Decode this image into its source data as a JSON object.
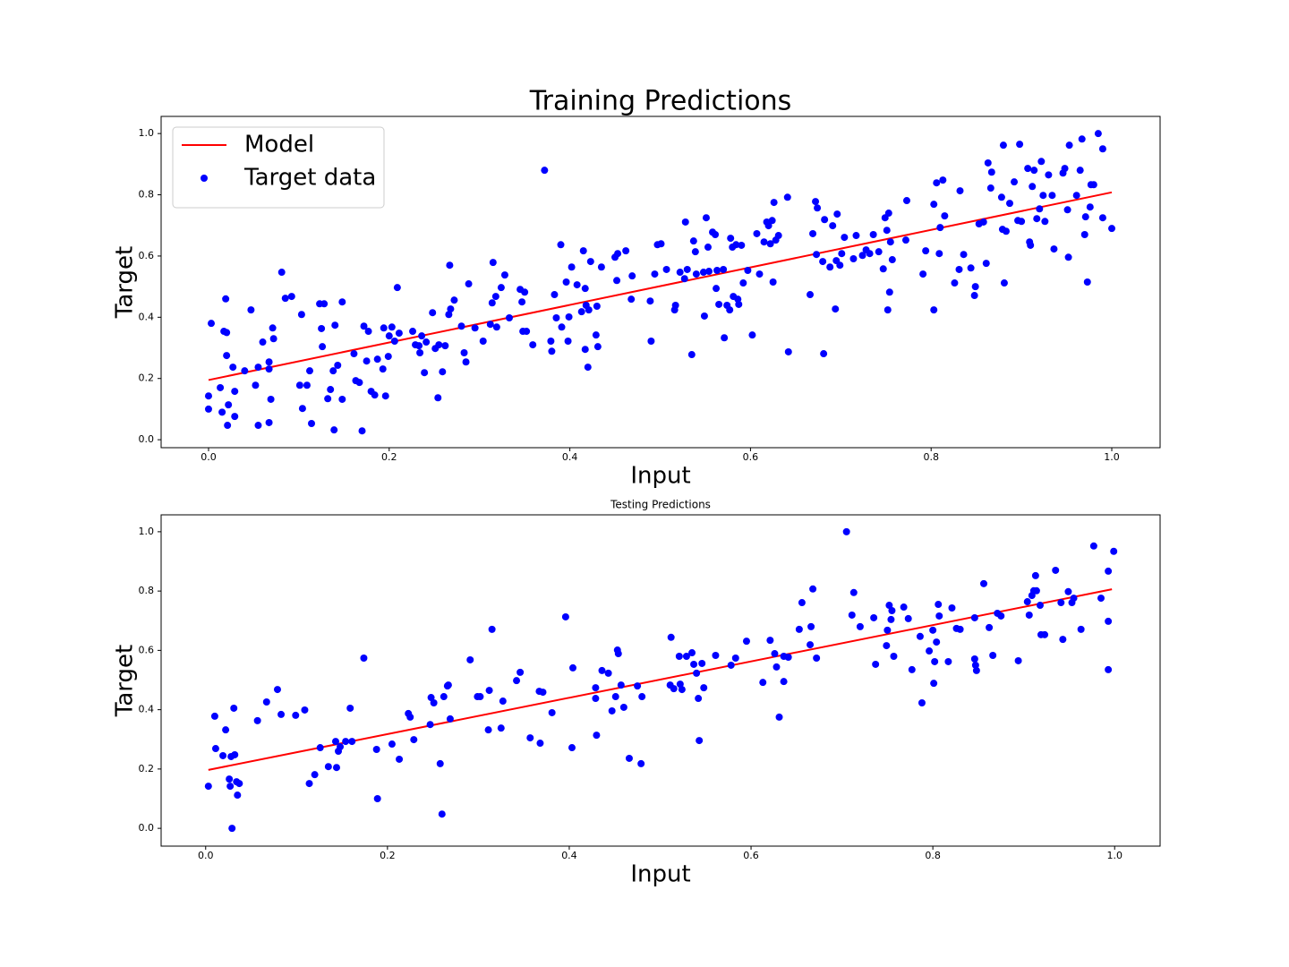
{
  "chart_data": [
    {
      "type": "scatter",
      "title": "Training Predictions",
      "x_label": "Input",
      "y_label": "Target",
      "xlim": [
        -0.0525,
        1.0535
      ],
      "ylim": [
        -0.026,
        1.056
      ],
      "xticks": [
        {
          "value": 0,
          "label": "0.0"
        },
        0.2,
        0.4,
        0.6,
        0.8,
        {
          "value": 1,
          "label": "1.0"
        }
      ],
      "yticks": [
        {
          "value": 0,
          "label": "0.0"
        },
        0.2,
        0.4,
        0.6,
        0.8,
        {
          "value": 1,
          "label": "1.0"
        }
      ],
      "legend": "upper left",
      "series": [
        {
          "name": "Model",
          "type": "line",
          "color": "#ff0000",
          "x": [
            0,
            1
          ],
          "values": [
            0.195,
            0.808
          ]
        },
        {
          "name": "Target data",
          "type": "scatter",
          "color": "#0000ff",
          "x": [
            0,
            0,
            0.003,
            0.013,
            0.015,
            0.017,
            0.019,
            0.02,
            0.02,
            0.021,
            0.022,
            0.027,
            0.029,
            0.029,
            0.04,
            0.047,
            0.052,
            0.055,
            0.055,
            0.06,
            0.067,
            0.067,
            0.067,
            0.069,
            0.071,
            0.072,
            0.081,
            0.085,
            0.092,
            0.101,
            0.103,
            0.104,
            0.109,
            0.112,
            0.114,
            0.123,
            0.125,
            0.126,
            0.128,
            0.132,
            0.135,
            0.138,
            0.139,
            0.14,
            0.143,
            0.148,
            0.148,
            0.161,
            0.163,
            0.167,
            0.17,
            0.172,
            0.175,
            0.177,
            0.18,
            0.184,
            0.187,
            0.193,
            0.194,
            0.196,
            0.199,
            0.2,
            0.203,
            0.206,
            0.209,
            0.211,
            0.226,
            0.229,
            0.233,
            0.234,
            0.236,
            0.239,
            0.241,
            0.248,
            0.251,
            0.254,
            0.255,
            0.259,
            0.262,
            0.266,
            0.267,
            0.268,
            0.272,
            0.28,
            0.283,
            0.285,
            0.288,
            0.295,
            0.304,
            0.312,
            0.314,
            0.315,
            0.318,
            0.319,
            0.324,
            0.328,
            0.333,
            0.345,
            0.347,
            0.348,
            0.35,
            0.352,
            0.359,
            0.372,
            0.379,
            0.38,
            0.383,
            0.385,
            0.39,
            0.391,
            0.396,
            0.398,
            0.399,
            0.402,
            0.408,
            0.413,
            0.415,
            0.417,
            0.417,
            0.418,
            0.42,
            0.421,
            0.423,
            0.429,
            0.43,
            0.431,
            0.435,
            0.45,
            0.452,
            0.453,
            0.462,
            0.468,
            0.469,
            0.489,
            0.49,
            0.494,
            0.497,
            0.501,
            0.507,
            0.516,
            0.517,
            0.522,
            0.527,
            0.528,
            0.53,
            0.535,
            0.537,
            0.539,
            0.54,
            0.548,
            0.549,
            0.551,
            0.553,
            0.554,
            0.558,
            0.561,
            0.562,
            0.563,
            0.565,
            0.57,
            0.571,
            0.574,
            0.577,
            0.578,
            0.58,
            0.581,
            0.584,
            0.586,
            0.587,
            0.59,
            0.592,
            0.597,
            0.602,
            0.607,
            0.61,
            0.615,
            0.618,
            0.62,
            0.622,
            0.624,
            0.625,
            0.626,
            0.628,
            0.631,
            0.642,
            0.641,
            0.666,
            0.669,
            0.674,
            0.673,
            0.672,
            0.681,
            0.68,
            0.682,
            0.688,
            0.691,
            0.694,
            0.695,
            0.696,
            0.699,
            0.701,
            0.704,
            0.714,
            0.717,
            0.724,
            0.728,
            0.732,
            0.736,
            0.742,
            0.747,
            0.749,
            0.751,
            0.752,
            0.753,
            0.754,
            0.755,
            0.757,
            0.773,
            0.772,
            0.791,
            0.794,
            0.803,
            0.803,
            0.806,
            0.809,
            0.81,
            0.813,
            0.815,
            0.826,
            0.831,
            0.832,
            0.836,
            0.844,
            0.848,
            0.849,
            0.853,
            0.858,
            0.861,
            0.863,
            0.867,
            0.866,
            0.878,
            0.879,
            0.88,
            0.881,
            0.883,
            0.887,
            0.892,
            0.896,
            0.898,
            0.9,
            0.907,
            0.909,
            0.91,
            0.912,
            0.914,
            0.917,
            0.92,
            0.922,
            0.924,
            0.926,
            0.93,
            0.934,
            0.936,
            0.946,
            0.948,
            0.951,
            0.952,
            0.953,
            0.961,
            0.965,
            0.967,
            0.97,
            0.971,
            0.973,
            0.976,
            0.977,
            0.98,
            0.985,
            0.99,
            0.99,
            1.0
          ],
          "values": [
            0.143,
            0.1,
            0.38,
            0.17,
            0.09,
            0.354,
            0.46,
            0.35,
            0.275,
            0.047,
            0.114,
            0.237,
            0.158,
            0.076,
            0.225,
            0.424,
            0.178,
            0.237,
            0.047,
            0.319,
            0.254,
            0.231,
            0.056,
            0.132,
            0.365,
            0.33,
            0.547,
            0.462,
            0.468,
            0.178,
            0.409,
            0.102,
            0.178,
            0.225,
            0.053,
            0.444,
            0.363,
            0.304,
            0.444,
            0.134,
            0.164,
            0.225,
            0.032,
            0.374,
            0.243,
            0.45,
            0.132,
            0.281,
            0.193,
            0.187,
            0.029,
            0.371,
            0.257,
            0.354,
            0.158,
            0.146,
            0.263,
            0.231,
            0.365,
            0.143,
            0.272,
            0.339,
            0.368,
            0.322,
            0.497,
            0.348,
            0.354,
            0.31,
            0.307,
            0.284,
            0.339,
            0.219,
            0.319,
            0.415,
            0.298,
            0.137,
            0.31,
            0.222,
            0.307,
            0.409,
            0.57,
            0.427,
            0.456,
            0.371,
            0.284,
            0.254,
            0.509,
            0.365,
            0.322,
            0.377,
            0.447,
            0.579,
            0.468,
            0.368,
            0.497,
            0.538,
            0.398,
            0.491,
            0.45,
            0.354,
            0.482,
            0.354,
            0.31,
            0.88,
            0.322,
            0.289,
            0.474,
            0.398,
            0.637,
            0.368,
            0.515,
            0.322,
            0.401,
            0.564,
            0.506,
            0.418,
            0.617,
            0.295,
            0.494,
            0.439,
            0.237,
            0.424,
            0.582,
            0.342,
            0.436,
            0.304,
            0.564,
            0.596,
            0.52,
            0.608,
            0.617,
            0.459,
            0.535,
            0.453,
            0.322,
            0.541,
            0.637,
            0.64,
            0.556,
            0.424,
            0.439,
            0.547,
            0.526,
            0.711,
            0.556,
            0.278,
            0.649,
            0.614,
            0.541,
            0.547,
            0.404,
            0.725,
            0.629,
            0.55,
            0.678,
            0.67,
            0.494,
            0.553,
            0.442,
            0.556,
            0.333,
            0.439,
            0.424,
            0.658,
            0.629,
            0.468,
            0.637,
            0.459,
            0.442,
            0.635,
            0.512,
            0.553,
            0.342,
            0.673,
            0.541,
            0.646,
            0.711,
            0.699,
            0.64,
            0.716,
            0.515,
            0.775,
            0.652,
            0.667,
            0.287,
            0.792,
            0.474,
            0.673,
            0.757,
            0.605,
            0.778,
            0.281,
            0.582,
            0.719,
            0.564,
            0.699,
            0.427,
            0.585,
            0.737,
            0.57,
            0.608,
            0.661,
            0.591,
            0.667,
            0.602,
            0.62,
            0.608,
            0.67,
            0.614,
            0.558,
            0.725,
            0.684,
            0.424,
            0.74,
            0.482,
            0.646,
            0.588,
            0.781,
            0.652,
            0.541,
            0.617,
            0.769,
            0.424,
            0.839,
            0.608,
            0.693,
            0.848,
            0.731,
            0.512,
            0.556,
            0.813,
            0.605,
            0.561,
            0.471,
            0.5,
            0.705,
            0.711,
            0.576,
            0.904,
            0.874,
            0.822,
            0.792,
            0.687,
            0.962,
            0.512,
            0.681,
            0.772,
            0.842,
            0.716,
            0.965,
            0.713,
            0.886,
            0.646,
            0.635,
            0.827,
            0.88,
            0.722,
            0.754,
            0.909,
            0.798,
            0.713,
            0.865,
            0.798,
            0.623,
            0.871,
            0.886,
            0.751,
            0.596,
            0.962,
            0.798,
            0.88,
            0.982,
            0.67,
            0.728,
            0.515,
            0.76,
            0.833,
            0.833,
            1.0,
            0.95,
            0.725,
            0.69
          ]
        }
      ]
    },
    {
      "type": "scatter",
      "title": "Testing Predictions",
      "x_label": "Input",
      "y_label": "Target",
      "xlim": [
        -0.049,
        1.05
      ],
      "ylim": [
        -0.06,
        1.057
      ],
      "xticks": [
        {
          "value": 0,
          "label": "0.0"
        },
        0.2,
        0.4,
        0.6,
        0.8,
        {
          "value": 1,
          "label": "1.0"
        }
      ],
      "yticks": [
        {
          "value": 0,
          "label": "0.0"
        },
        0.2,
        0.4,
        0.6,
        0.8,
        {
          "value": 1,
          "label": "1.0"
        }
      ],
      "series": [
        {
          "type": "line",
          "color": "#ff0000",
          "x": [
            0.003,
            0.997
          ],
          "values": [
            0.197,
            0.806
          ]
        },
        {
          "type": "scatter",
          "color": "#0000ff",
          "x": [
            0.003,
            0.01,
            0.011,
            0.019,
            0.022,
            0.026,
            0.027,
            0.028,
            0.029,
            0.031,
            0.032,
            0.034,
            0.035,
            0.037,
            0.057,
            0.067,
            0.079,
            0.083,
            0.099,
            0.109,
            0.114,
            0.12,
            0.126,
            0.135,
            0.143,
            0.144,
            0.146,
            0.148,
            0.154,
            0.159,
            0.161,
            0.174,
            0.188,
            0.189,
            0.205,
            0.213,
            0.223,
            0.225,
            0.229,
            0.247,
            0.248,
            0.251,
            0.258,
            0.26,
            0.262,
            0.266,
            0.267,
            0.269,
            0.291,
            0.299,
            0.302,
            0.311,
            0.312,
            0.315,
            0.325,
            0.327,
            0.342,
            0.346,
            0.357,
            0.367,
            0.368,
            0.371,
            0.381,
            0.396,
            0.403,
            0.404,
            0.429,
            0.429,
            0.43,
            0.436,
            0.443,
            0.447,
            0.451,
            0.453,
            0.454,
            0.457,
            0.46,
            0.466,
            0.475,
            0.479,
            0.48,
            0.511,
            0.512,
            0.515,
            0.521,
            0.522,
            0.524,
            0.529,
            0.535,
            0.537,
            0.54,
            0.542,
            0.543,
            0.546,
            0.548,
            0.561,
            0.578,
            0.583,
            0.595,
            0.613,
            0.621,
            0.626,
            0.628,
            0.631,
            0.636,
            0.636,
            0.641,
            0.653,
            0.656,
            0.665,
            0.666,
            0.668,
            0.672,
            0.705,
            0.711,
            0.713,
            0.72,
            0.735,
            0.737,
            0.749,
            0.75,
            0.752,
            0.754,
            0.755,
            0.757,
            0.768,
            0.773,
            0.777,
            0.786,
            0.788,
            0.796,
            0.8,
            0.801,
            0.802,
            0.804,
            0.806,
            0.807,
            0.817,
            0.821,
            0.826,
            0.83,
            0.846,
            0.846,
            0.847,
            0.848,
            0.856,
            0.862,
            0.866,
            0.871,
            0.875,
            0.894,
            0.904,
            0.906,
            0.909,
            0.911,
            0.913,
            0.914,
            0.918,
            0.919,
            0.923,
            0.935,
            0.941,
            0.943,
            0.949,
            0.953,
            0.955,
            0.963,
            0.977,
            0.985,
            0.993,
            0.993,
            0.993,
            0.999
          ],
          "values": [
            0.142,
            0.378,
            0.269,
            0.245,
            0.332,
            0.166,
            0.142,
            0.242,
            0,
            0.405,
            0.248,
            0.157,
            0.112,
            0.151,
            0.363,
            0.426,
            0.468,
            0.384,
            0.381,
            0.399,
            0.151,
            0.181,
            0.272,
            0.208,
            0.293,
            0.205,
            0.26,
            0.275,
            0.293,
            0.405,
            0.293,
            0.574,
            0.266,
            0.1,
            0.284,
            0.233,
            0.387,
            0.375,
            0.299,
            0.35,
            0.441,
            0.423,
            0.218,
            0.048,
            0.444,
            0.48,
            0.483,
            0.369,
            0.568,
            0.444,
            0.444,
            0.332,
            0.465,
            0.671,
            0.338,
            0.429,
            0.498,
            0.526,
            0.305,
            0.462,
            0.287,
            0.459,
            0.39,
            0.713,
            0.272,
            0.541,
            0.474,
            0.438,
            0.314,
            0.532,
            0.523,
            0.396,
            0.444,
            0.601,
            0.589,
            0.483,
            0.408,
            0.236,
            0.48,
            0.218,
            0.444,
            0.483,
            0.644,
            0.471,
            0.58,
            0.486,
            0.468,
            0.58,
            0.592,
            0.553,
            0.523,
            0.438,
            0.296,
            0.556,
            0.474,
            0.583,
            0.55,
            0.574,
            0.631,
            0.492,
            0.634,
            0.589,
            0.544,
            0.375,
            0.495,
            0.58,
            0.577,
            0.671,
            0.761,
            0.619,
            0.68,
            0.807,
            0.574,
            1.0,
            0.719,
            0.795,
            0.68,
            0.71,
            0.553,
            0.616,
            0.668,
            0.752,
            0.704,
            0.734,
            0.58,
            0.746,
            0.707,
            0.535,
            0.647,
            0.423,
            0.598,
            0.668,
            0.489,
            0.562,
            0.628,
            0.755,
            0.716,
            0.562,
            0.743,
            0.674,
            0.671,
            0.71,
            0.571,
            0.55,
            0.532,
            0.825,
            0.677,
            0.583,
            0.725,
            0.716,
            0.565,
            0.764,
            0.719,
            0.785,
            0.801,
            0.852,
            0.801,
            0.752,
            0.653,
            0.653,
            0.87,
            0.761,
            0.637,
            0.798,
            0.761,
            0.776,
            0.671,
            0.952,
            0.776,
            0.698,
            0.535,
            0.867,
            0.934
          ]
        }
      ]
    }
  ]
}
